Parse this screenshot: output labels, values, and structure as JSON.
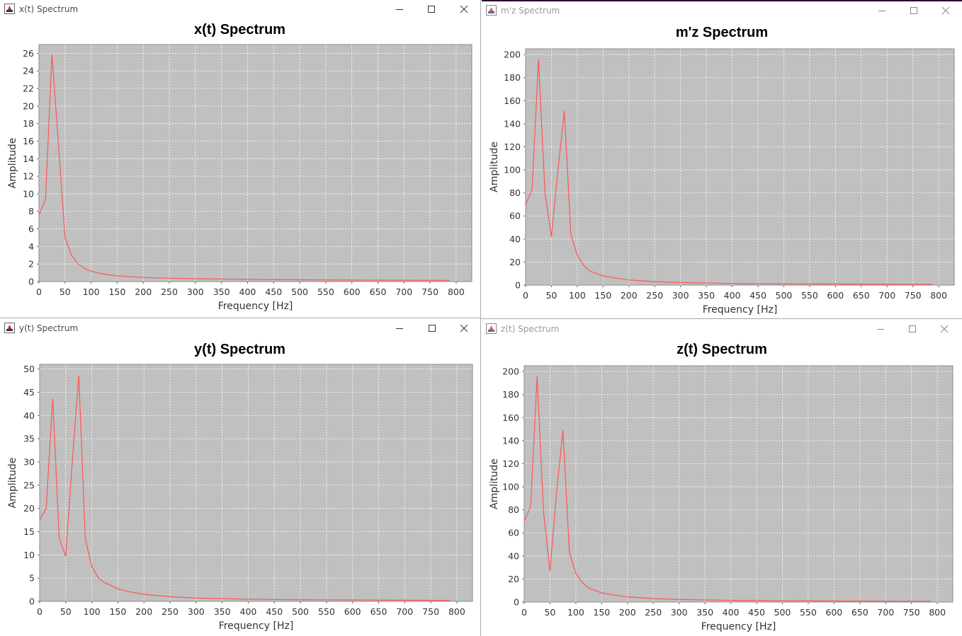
{
  "windows": [
    {
      "id": "xt",
      "title": "x(t) Spectrum",
      "active": true
    },
    {
      "id": "mz",
      "title": "m'z Spectrum",
      "active": false
    },
    {
      "id": "yt",
      "title": "y(t) Spectrum",
      "active": true
    },
    {
      "id": "zt",
      "title": "z(t) Spectrum",
      "active": false
    }
  ],
  "colors": {
    "plot_bg": "#c0c0c0",
    "grid": "#ffffff",
    "series": "#ff5555"
  },
  "chart_data": [
    {
      "type": "line",
      "title": "x(t) Spectrum",
      "xlabel": "Frequency [Hz]",
      "ylabel": "Amplitude",
      "xlim": [
        0,
        830
      ],
      "ylim": [
        0,
        27
      ],
      "xticks": [
        0,
        50,
        100,
        150,
        200,
        250,
        300,
        350,
        400,
        450,
        500,
        550,
        600,
        650,
        700,
        750,
        800
      ],
      "yticks": [
        0,
        2,
        4,
        6,
        8,
        10,
        12,
        14,
        16,
        18,
        20,
        22,
        24,
        26
      ],
      "grid": true,
      "x": [
        0,
        12.5,
        25,
        37.5,
        50,
        62.5,
        75,
        87.5,
        100,
        112.5,
        125,
        150,
        175,
        200,
        250,
        300,
        400,
        500,
        600,
        700,
        787.5
      ],
      "series": [
        {
          "values": [
            7.6,
            9.3,
            25.9,
            15.5,
            5,
            3,
            2,
            1.5,
            1.2,
            1,
            0.85,
            0.65,
            0.55,
            0.47,
            0.38,
            0.32,
            0.25,
            0.2,
            0.17,
            0.15,
            0.14
          ]
        }
      ]
    },
    {
      "type": "line",
      "title": "m'z Spectrum",
      "xlabel": "Frequency [Hz]",
      "ylabel": "Amplitude",
      "xlim": [
        0,
        830
      ],
      "ylim": [
        0,
        205
      ],
      "xticks": [
        0,
        50,
        100,
        150,
        200,
        250,
        300,
        350,
        400,
        450,
        500,
        550,
        600,
        650,
        700,
        750,
        800
      ],
      "yticks": [
        0,
        20,
        40,
        60,
        80,
        100,
        120,
        140,
        160,
        180,
        200
      ],
      "grid": true,
      "x": [
        0,
        12.5,
        25,
        37.5,
        50,
        62.5,
        75,
        87.5,
        100,
        112.5,
        125,
        150,
        175,
        200,
        250,
        300,
        400,
        500,
        600,
        700,
        787.5
      ],
      "series": [
        {
          "values": [
            70,
            83,
            196,
            80,
            42,
            100,
            151,
            44,
            26,
            17,
            12,
            8,
            6,
            4.5,
            3,
            2.2,
            1.5,
            1.1,
            0.9,
            0.7,
            0.6
          ]
        }
      ]
    },
    {
      "type": "line",
      "title": "y(t) Spectrum",
      "xlabel": "Frequency [Hz]",
      "ylabel": "Amplitude",
      "xlim": [
        0,
        830
      ],
      "ylim": [
        0,
        51
      ],
      "xticks": [
        0,
        50,
        100,
        150,
        200,
        250,
        300,
        350,
        400,
        450,
        500,
        550,
        600,
        650,
        700,
        750,
        800
      ],
      "yticks": [
        0,
        5,
        10,
        15,
        20,
        25,
        30,
        35,
        40,
        45,
        50
      ],
      "grid": true,
      "x": [
        0,
        12.5,
        25,
        37.5,
        50,
        62.5,
        75,
        87.5,
        100,
        112.5,
        125,
        150,
        175,
        200,
        250,
        300,
        400,
        500,
        600,
        700,
        787.5
      ],
      "series": [
        {
          "values": [
            17.5,
            20,
            43.7,
            13.5,
            9.7,
            30,
            48.5,
            13.5,
            7.5,
            5,
            4,
            2.7,
            2,
            1.5,
            1,
            0.7,
            0.45,
            0.35,
            0.3,
            0.25,
            0.2
          ]
        }
      ]
    },
    {
      "type": "line",
      "title": "z(t) Spectrum",
      "xlabel": "Frequency [Hz]",
      "ylabel": "Amplitude",
      "xlim": [
        0,
        830
      ],
      "ylim": [
        0,
        205
      ],
      "xticks": [
        0,
        50,
        100,
        150,
        200,
        250,
        300,
        350,
        400,
        450,
        500,
        550,
        600,
        650,
        700,
        750,
        800
      ],
      "yticks": [
        0,
        20,
        40,
        60,
        80,
        100,
        120,
        140,
        160,
        180,
        200
      ],
      "grid": true,
      "x": [
        0,
        12.5,
        25,
        37.5,
        50,
        62.5,
        75,
        87.5,
        100,
        112.5,
        125,
        150,
        175,
        200,
        250,
        300,
        400,
        500,
        600,
        700,
        787.5
      ],
      "series": [
        {
          "values": [
            70,
            83,
            196,
            78,
            27,
            95,
            149,
            43,
            25,
            17,
            12,
            8,
            6,
            4.5,
            3,
            2.2,
            1.5,
            1.1,
            0.9,
            0.7,
            0.6
          ]
        }
      ]
    }
  ]
}
